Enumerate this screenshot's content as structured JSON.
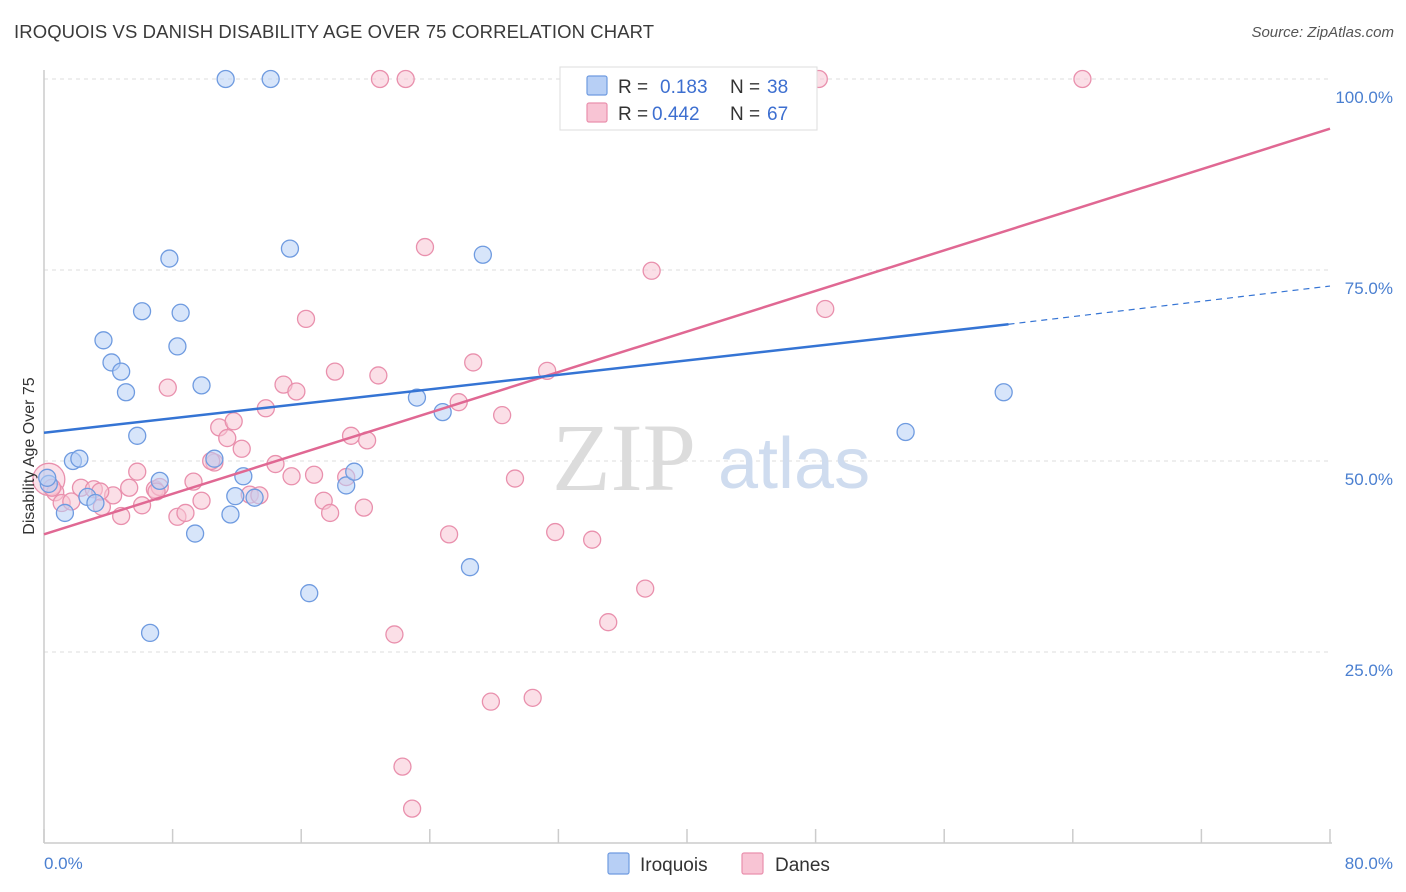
{
  "header": {
    "title": "IROQUOIS VS DANISH DISABILITY AGE OVER 75 CORRELATION CHART",
    "source": "Source: ZipAtlas.com"
  },
  "watermark": {
    "zip": "ZIP",
    "atlas": "atlas"
  },
  "colors": {
    "iroquois_fill": "#b7cff5",
    "iroquois_stroke": "#6f9be0",
    "iroquois_line": "#3574d4",
    "danes_fill": "#f8c4d4",
    "danes_stroke": "#e990ad",
    "danes_line": "#e06893",
    "tick_label": "#4a7fd0",
    "grid": "#dddddd"
  },
  "legend": {
    "r_label": "R =",
    "n_label": "N =",
    "series": [
      {
        "name": "Iroquois",
        "r": "0.183",
        "n": "38"
      },
      {
        "name": "Danes",
        "r": "0.442",
        "n": "67"
      }
    ]
  },
  "chart_data": {
    "type": "scatter",
    "title": "IROQUOIS VS DANISH DISABILITY AGE OVER 75 CORRELATION CHART",
    "xlabel": "",
    "ylabel": "Disability Age Over 75",
    "xlim": [
      0,
      80
    ],
    "ylim": [
      0,
      104
    ],
    "x_tick_labels": [
      "0.0%",
      "80.0%"
    ],
    "y_ticks": [
      25,
      50,
      75,
      100
    ],
    "y_tick_labels": [
      "25.0%",
      "50.0%",
      "75.0%",
      "100.0%"
    ],
    "grid": true,
    "legend_position": "top-center",
    "series": [
      {
        "name": "Iroquois",
        "points": [
          [
            0.3,
            47.0
          ],
          [
            1.3,
            43.2
          ],
          [
            1.8,
            50.0
          ],
          [
            2.2,
            50.3
          ],
          [
            2.7,
            45.3
          ],
          [
            3.2,
            44.5
          ],
          [
            3.7,
            65.8
          ],
          [
            4.2,
            62.9
          ],
          [
            4.8,
            61.7
          ],
          [
            5.1,
            59.0
          ],
          [
            5.8,
            53.3
          ],
          [
            6.1,
            69.6
          ],
          [
            6.6,
            27.5
          ],
          [
            7.2,
            47.4
          ],
          [
            7.8,
            76.5
          ],
          [
            8.3,
            65.0
          ],
          [
            8.5,
            69.4
          ],
          [
            9.4,
            40.5
          ],
          [
            9.8,
            59.9
          ],
          [
            10.6,
            50.3
          ],
          [
            11.3,
            100.0
          ],
          [
            11.6,
            43.0
          ],
          [
            11.9,
            45.4
          ],
          [
            12.4,
            48.0
          ],
          [
            13.1,
            45.2
          ],
          [
            14.1,
            100.0
          ],
          [
            15.3,
            77.8
          ],
          [
            16.5,
            32.7
          ],
          [
            18.8,
            46.8
          ],
          [
            19.3,
            48.6
          ],
          [
            23.2,
            58.3
          ],
          [
            24.8,
            56.4
          ],
          [
            26.5,
            36.1
          ],
          [
            27.3,
            77.0
          ],
          [
            38.5,
            100.0
          ],
          [
            53.6,
            53.8
          ],
          [
            59.7,
            59.0
          ],
          [
            0.2,
            47.8
          ]
        ],
        "trend": {
          "x": [
            0,
            60
          ],
          "y": [
            53.7,
            67.9
          ]
        },
        "trend_dashed": {
          "x": [
            60,
            80
          ],
          "y": [
            67.9,
            72.9
          ]
        }
      },
      {
        "name": "Danes",
        "points": [
          [
            0.3,
            47.6
          ],
          [
            0.7,
            45.9
          ],
          [
            1.1,
            44.5
          ],
          [
            1.7,
            44.7
          ],
          [
            2.3,
            46.5
          ],
          [
            3.1,
            46.3
          ],
          [
            3.6,
            44.0
          ],
          [
            4.3,
            45.5
          ],
          [
            4.8,
            42.8
          ],
          [
            5.3,
            46.5
          ],
          [
            5.8,
            48.6
          ],
          [
            6.1,
            44.2
          ],
          [
            6.9,
            46.3
          ],
          [
            7.2,
            46.6
          ],
          [
            7.7,
            59.6
          ],
          [
            8.3,
            42.7
          ],
          [
            8.8,
            43.2
          ],
          [
            9.3,
            47.3
          ],
          [
            9.8,
            44.8
          ],
          [
            10.6,
            49.8
          ],
          [
            10.9,
            54.4
          ],
          [
            11.4,
            53.0
          ],
          [
            11.8,
            55.2
          ],
          [
            12.3,
            51.6
          ],
          [
            12.8,
            45.6
          ],
          [
            13.4,
            45.5
          ],
          [
            13.8,
            56.9
          ],
          [
            14.4,
            49.6
          ],
          [
            14.9,
            60.0
          ],
          [
            15.4,
            48.0
          ],
          [
            15.7,
            59.1
          ],
          [
            16.3,
            68.6
          ],
          [
            16.8,
            48.2
          ],
          [
            17.4,
            44.8
          ],
          [
            17.8,
            43.2
          ],
          [
            18.1,
            61.7
          ],
          [
            18.8,
            47.9
          ],
          [
            19.1,
            53.3
          ],
          [
            19.9,
            43.9
          ],
          [
            20.1,
            52.7
          ],
          [
            20.8,
            61.2
          ],
          [
            21.8,
            27.3
          ],
          [
            22.3,
            10.0
          ],
          [
            22.9,
            4.5
          ],
          [
            23.7,
            78.0
          ],
          [
            25.2,
            40.4
          ],
          [
            25.8,
            57.7
          ],
          [
            26.7,
            62.9
          ],
          [
            27.8,
            18.5
          ],
          [
            28.5,
            56.0
          ],
          [
            29.3,
            47.7
          ],
          [
            30.4,
            19.0
          ],
          [
            31.3,
            61.8
          ],
          [
            31.8,
            40.7
          ],
          [
            34.1,
            39.7
          ],
          [
            35.1,
            28.9
          ],
          [
            37.4,
            33.3
          ],
          [
            37.8,
            74.9
          ],
          [
            48.6,
            69.9
          ],
          [
            48.2,
            100.0
          ],
          [
            64.6,
            100.0
          ],
          [
            20.9,
            100.0
          ],
          [
            22.5,
            100.0
          ],
          [
            7.0,
            46.0
          ],
          [
            10.4,
            50.0
          ],
          [
            3.5,
            46.0
          ],
          [
            0.5,
            46.5
          ]
        ],
        "trend": {
          "x": [
            0,
            80
          ],
          "y": [
            40.4,
            93.5
          ]
        }
      }
    ]
  }
}
